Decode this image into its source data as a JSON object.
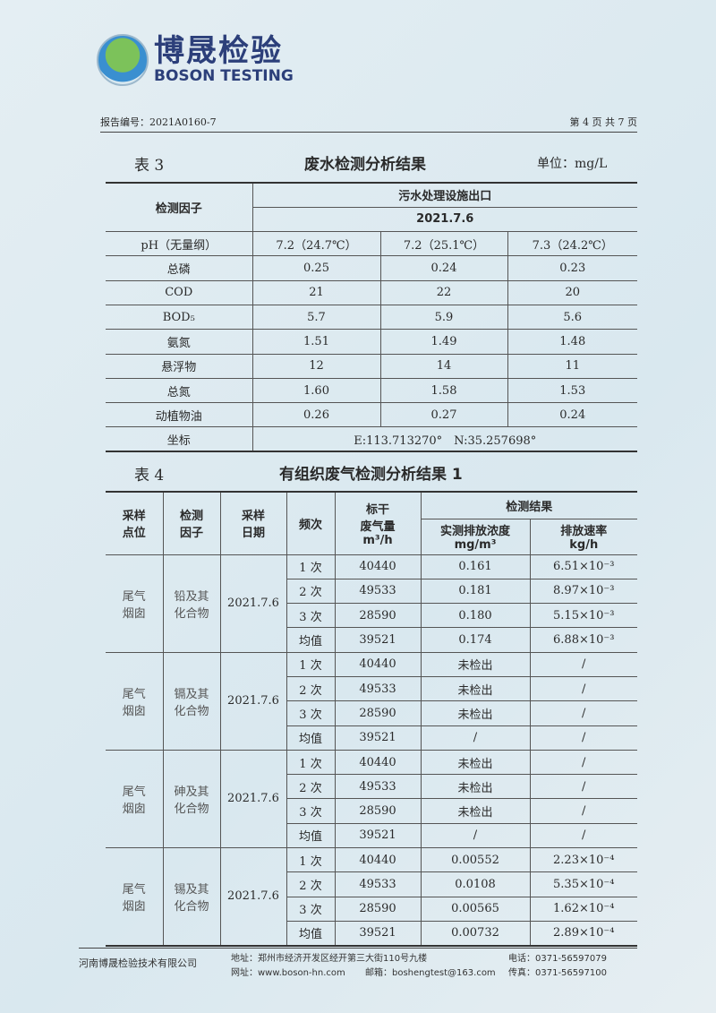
{
  "logo": {
    "cn": "博晟检验",
    "en": "BOSON TESTING"
  },
  "header": {
    "report_no": "报告编号：2021A0160-7",
    "page": "第 4 页 共 7 页"
  },
  "table3": {
    "caption": "表 3",
    "title": "废水检测分析结果",
    "unit": "单位：mg/L",
    "col_factor": "检测因子",
    "location": "污水处理设施出口",
    "date": "2021.7.6",
    "rows": [
      [
        "pH（无量纲）",
        "7.2（24.7℃）",
        "7.2（25.1℃）",
        "7.3（24.2℃）"
      ],
      [
        "总磷",
        "0.25",
        "0.24",
        "0.23"
      ],
      [
        "COD",
        "21",
        "22",
        "20"
      ],
      [
        "BOD₅",
        "5.7",
        "5.9",
        "5.6"
      ],
      [
        "氨氮",
        "1.51",
        "1.49",
        "1.48"
      ],
      [
        "悬浮物",
        "12",
        "14",
        "11"
      ],
      [
        "总氮",
        "1.60",
        "1.58",
        "1.53"
      ],
      [
        "动植物油",
        "0.26",
        "0.27",
        "0.24"
      ]
    ],
    "coord_label": "坐标",
    "coord_value": "E:113.713270°　N:35.257698°"
  },
  "table4": {
    "caption": "表 4",
    "title": "有组织废气检测分析结果 1",
    "headers": {
      "point": "采样\n点位",
      "factor": "检测\n因子",
      "date": "采样\n日期",
      "freq": "频次",
      "flow": "标干\n废气量\nm³/h",
      "results": "检测结果",
      "conc": "实测排放浓度\nmg/m³",
      "rate": "排放速率\nkg/h"
    },
    "groups": [
      {
        "point": "尾气\n烟囱",
        "factor": "铅及其\n化合物",
        "date": "2021.7.6",
        "rows": [
          [
            "1 次",
            "40440",
            "0.161",
            "6.51×10⁻³"
          ],
          [
            "2 次",
            "49533",
            "0.181",
            "8.97×10⁻³"
          ],
          [
            "3 次",
            "28590",
            "0.180",
            "5.15×10⁻³"
          ],
          [
            "均值",
            "39521",
            "0.174",
            "6.88×10⁻³"
          ]
        ]
      },
      {
        "point": "尾气\n烟囱",
        "factor": "镉及其\n化合物",
        "date": "2021.7.6",
        "rows": [
          [
            "1 次",
            "40440",
            "未检出",
            "/"
          ],
          [
            "2 次",
            "49533",
            "未检出",
            "/"
          ],
          [
            "3 次",
            "28590",
            "未检出",
            "/"
          ],
          [
            "均值",
            "39521",
            "/",
            "/"
          ]
        ]
      },
      {
        "point": "尾气\n烟囱",
        "factor": "砷及其\n化合物",
        "date": "2021.7.6",
        "rows": [
          [
            "1 次",
            "40440",
            "未检出",
            "/"
          ],
          [
            "2 次",
            "49533",
            "未检出",
            "/"
          ],
          [
            "3 次",
            "28590",
            "未检出",
            "/"
          ],
          [
            "均值",
            "39521",
            "/",
            "/"
          ]
        ]
      },
      {
        "point": "尾气\n烟囱",
        "factor": "锡及其\n化合物",
        "date": "2021.7.6",
        "rows": [
          [
            "1 次",
            "40440",
            "0.00552",
            "2.23×10⁻⁴"
          ],
          [
            "2 次",
            "49533",
            "0.0108",
            "5.35×10⁻⁴"
          ],
          [
            "3 次",
            "28590",
            "0.00565",
            "1.62×10⁻⁴"
          ],
          [
            "均值",
            "39521",
            "0.00732",
            "2.89×10⁻⁴"
          ]
        ]
      }
    ]
  },
  "footer": {
    "company": "河南博晟检验技术有限公司",
    "address": "地址：郑州市经济开发区经开第三大街110号九楼",
    "phone": "电话：0371-56597079",
    "website": "网址：www.boson-hn.com",
    "email": "邮箱：boshengtest@163.com",
    "fax": "传真：0371-56597100"
  }
}
